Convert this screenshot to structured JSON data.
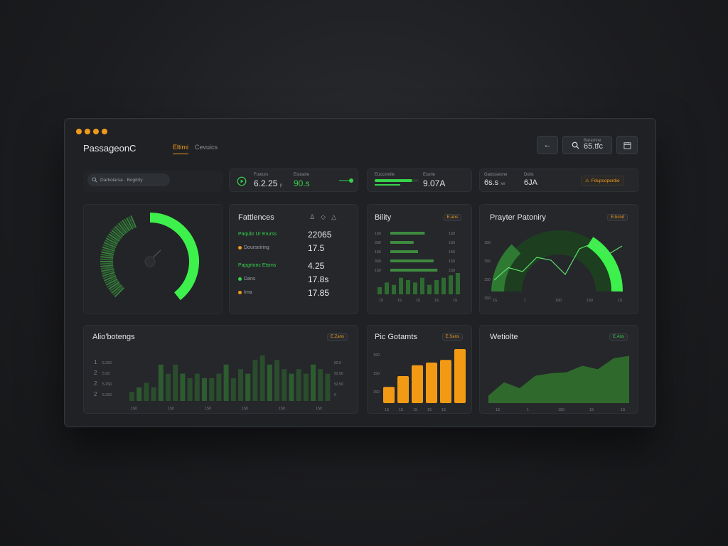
{
  "app": {
    "brand": "PassageonC",
    "tabs": [
      "Eltimi",
      "Cevuics"
    ]
  },
  "topbar": {
    "back_icon": "arrow-left-icon",
    "search_icon": "search-icon",
    "search_sub": "Baramne",
    "search_value": "65.tfc",
    "calendar_icon": "calendar-icon"
  },
  "search": {
    "value": "Darbolarsa · Bogitrty",
    "icon": "search-icon"
  },
  "stats": [
    {
      "label": "Fuoturs",
      "value": "6.2.25",
      "unit": "p",
      "icon": "play-circle-icon"
    },
    {
      "label": "Estoaire",
      "value": "90.s",
      "accent": "#37d14a"
    },
    {
      "label": "Eucconrile",
      "value": "",
      "progress": 0.85
    },
    {
      "label": "Esorie",
      "value": "9.07A"
    },
    {
      "label": "Gatosseone",
      "value": "6s.s",
      "unit": "xe"
    },
    {
      "label": "Dotis",
      "value": "6JA"
    },
    {
      "label": "Fdupsoperdie",
      "value": "",
      "icon": "warning-icon"
    }
  ],
  "gauge": {
    "value": 0.5
  },
  "fattlences": {
    "title": "Fattlences",
    "icons": [
      "user-icon",
      "diamond-icon",
      "flask-icon"
    ],
    "rows": [
      {
        "label": "Paqubr Ur Erurss",
        "value": "22065",
        "color": "#37d14a"
      },
      {
        "label": "Dourseiring",
        "value": "17.5",
        "color": "#f09a1c"
      },
      {
        "label": "Papgrtonc Etsms",
        "value": "4.25",
        "color": "#37d14a"
      },
      {
        "label": "Dans",
        "value": "17.8s",
        "color": "#37d14a"
      },
      {
        "label": "Ima",
        "value": "17.85",
        "color": "#f09a1c"
      }
    ]
  },
  "bility": {
    "title": "Bility",
    "pill": "E.ans",
    "hbars": [
      {
        "label": "1S0",
        "value": 0.62
      },
      {
        "label": "3S0",
        "value": 0.42
      },
      {
        "label": "1S6",
        "value": 0.5
      },
      {
        "label": "3S0",
        "value": 0.78
      },
      {
        "label": "1S0",
        "value": 0.85
      }
    ],
    "right_labels": [
      "1S0",
      "1S0",
      "1S0",
      "1S0",
      "1S0"
    ],
    "bars": [
      3,
      5,
      4,
      7,
      6,
      5,
      7,
      4,
      6,
      7,
      8,
      9
    ]
  },
  "partner": {
    "title": "Prayter Patoniry",
    "pill": "E.bcnd",
    "y_labels": [
      "1S0",
      "1S0",
      "1S0",
      "1S0"
    ],
    "x_labels": [
      "1S",
      "1",
      "1S0",
      "1S0",
      "1S"
    ],
    "line": [
      0.2,
      0.42,
      0.35,
      0.6,
      0.55,
      0.3,
      0.75,
      0.85,
      0.65,
      0.8
    ],
    "ring": 0.34
  },
  "aliobotengs": {
    "title": "Alio'botengs",
    "pill": "E.Zans",
    "left_labels": [
      {
        "n": "1",
        "v": "5.2S0"
      },
      {
        "n": "2",
        "v": "5.S0"
      },
      {
        "n": "2",
        "v": "5.2S0"
      },
      {
        "n": "2",
        "v": "5.2S0"
      }
    ],
    "right_labels": [
      "52.0",
      "52.50",
      "52.50",
      "0"
    ],
    "x_labels": [
      "1S0",
      "1S0",
      "1S0",
      "1S0",
      "1S0",
      "1S0"
    ],
    "bars": [
      2,
      3,
      4,
      3,
      8,
      6,
      8,
      6,
      5,
      6,
      5,
      5,
      6,
      8,
      5,
      7,
      6,
      9,
      10,
      8,
      9,
      7,
      6,
      7,
      6,
      8,
      7,
      6
    ]
  },
  "pic": {
    "title": "Pic Gotamts",
    "pill": "E.Sans",
    "y_labels": [
      "1S0",
      "1S0",
      "1S0"
    ],
    "x_labels": [
      "1S",
      "1S",
      "1S",
      "1S",
      "1S"
    ],
    "bars": [
      0.3,
      0.5,
      0.7,
      0.75,
      0.8,
      1.0
    ],
    "color": "#f39a14"
  },
  "website": {
    "title": "Wetiolte",
    "pill": "E.Ans",
    "x_labels": [
      "1S",
      "1",
      "1S0",
      "1S",
      "1S"
    ],
    "area": [
      0.15,
      0.42,
      0.3,
      0.55,
      0.6,
      0.62,
      0.75,
      0.68,
      0.9,
      0.95
    ],
    "color": "#2f6a2c"
  },
  "colors": {
    "accent": "#f09a1c",
    "green": "#37d14a",
    "dark_green": "#2a5a2c",
    "panel": "#25272b"
  }
}
